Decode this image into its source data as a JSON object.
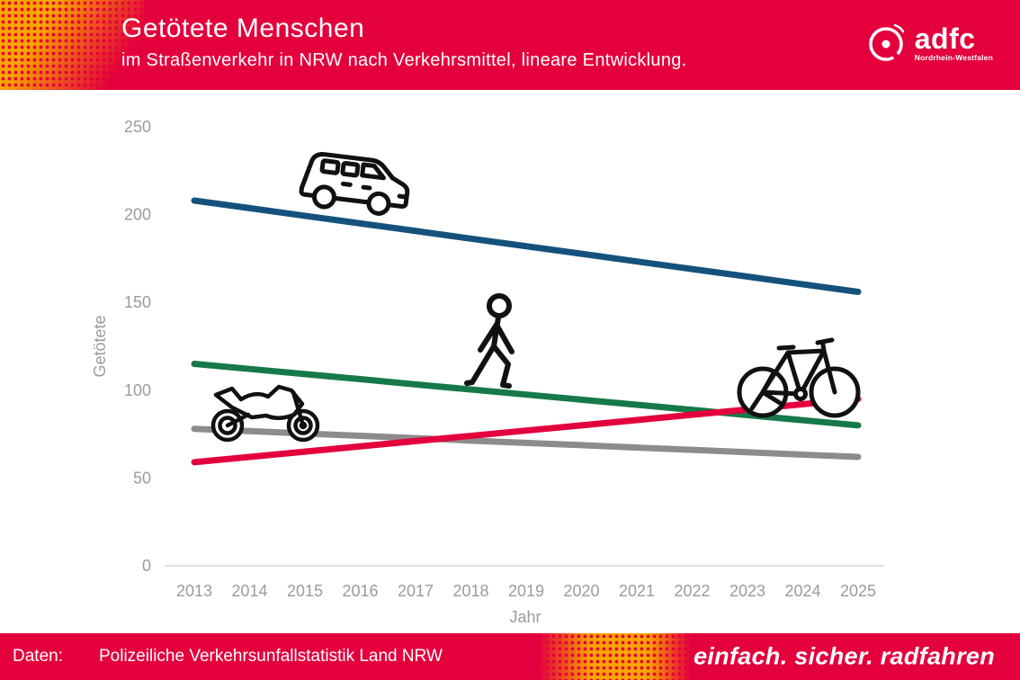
{
  "header": {
    "title": "Getötete Menschen",
    "subtitle": "im Straßenverkehr in NRW nach Verkehrsmittel, lineare Entwicklung.",
    "logo": {
      "name": "adfc",
      "region": "Nordrhein-Westfalen"
    },
    "colors": {
      "brand_red": "#E4003C",
      "accent_orange": "#F7A600"
    }
  },
  "footer": {
    "label": "Daten:",
    "source": "Polizeiliche Verkehrsunfallstatistik Land NRW",
    "slogan": "einfach. sicher. radfahren"
  },
  "chart_data": {
    "type": "line",
    "title": "Getötete Menschen",
    "subtitle": "im Straßenverkehr in NRW nach Verkehrsmittel, lineare Entwicklung.",
    "xlabel": "Jahr",
    "ylabel": "Getötete",
    "x": [
      2013,
      2014,
      2015,
      2016,
      2017,
      2018,
      2019,
      2020,
      2021,
      2022,
      2023,
      2024,
      2025
    ],
    "ylim": [
      0,
      250
    ],
    "yticks": [
      0,
      50,
      100,
      150,
      200,
      250
    ],
    "grid": false,
    "legend": "icons-next-to-lines",
    "series": [
      {
        "name": "Auto (Pkw)",
        "icon": "car-icon",
        "color": "#14527C",
        "values": [
          208,
          203.7,
          199.3,
          195,
          190.7,
          186.3,
          182,
          177.7,
          173.3,
          169,
          164.7,
          160.3,
          156
        ]
      },
      {
        "name": "Fußgänger",
        "icon": "pedestrian-icon",
        "color": "#16794A",
        "values": [
          115,
          112.1,
          109.2,
          106.3,
          103.3,
          100.4,
          97.5,
          94.6,
          91.7,
          88.8,
          85.8,
          82.9,
          80
        ]
      },
      {
        "name": "Motorrad",
        "icon": "motorcycle-icon",
        "color": "#8C8C8C",
        "values": [
          78,
          76.7,
          75.3,
          74,
          72.7,
          71.3,
          70,
          68.7,
          67.3,
          66,
          64.7,
          63.3,
          62
        ]
      },
      {
        "name": "Fahrrad",
        "icon": "bicycle-icon",
        "color": "#E4003C",
        "values": [
          59,
          62,
          65,
          68,
          71,
          74,
          77,
          80,
          83,
          86,
          89,
          92,
          95
        ]
      }
    ]
  }
}
